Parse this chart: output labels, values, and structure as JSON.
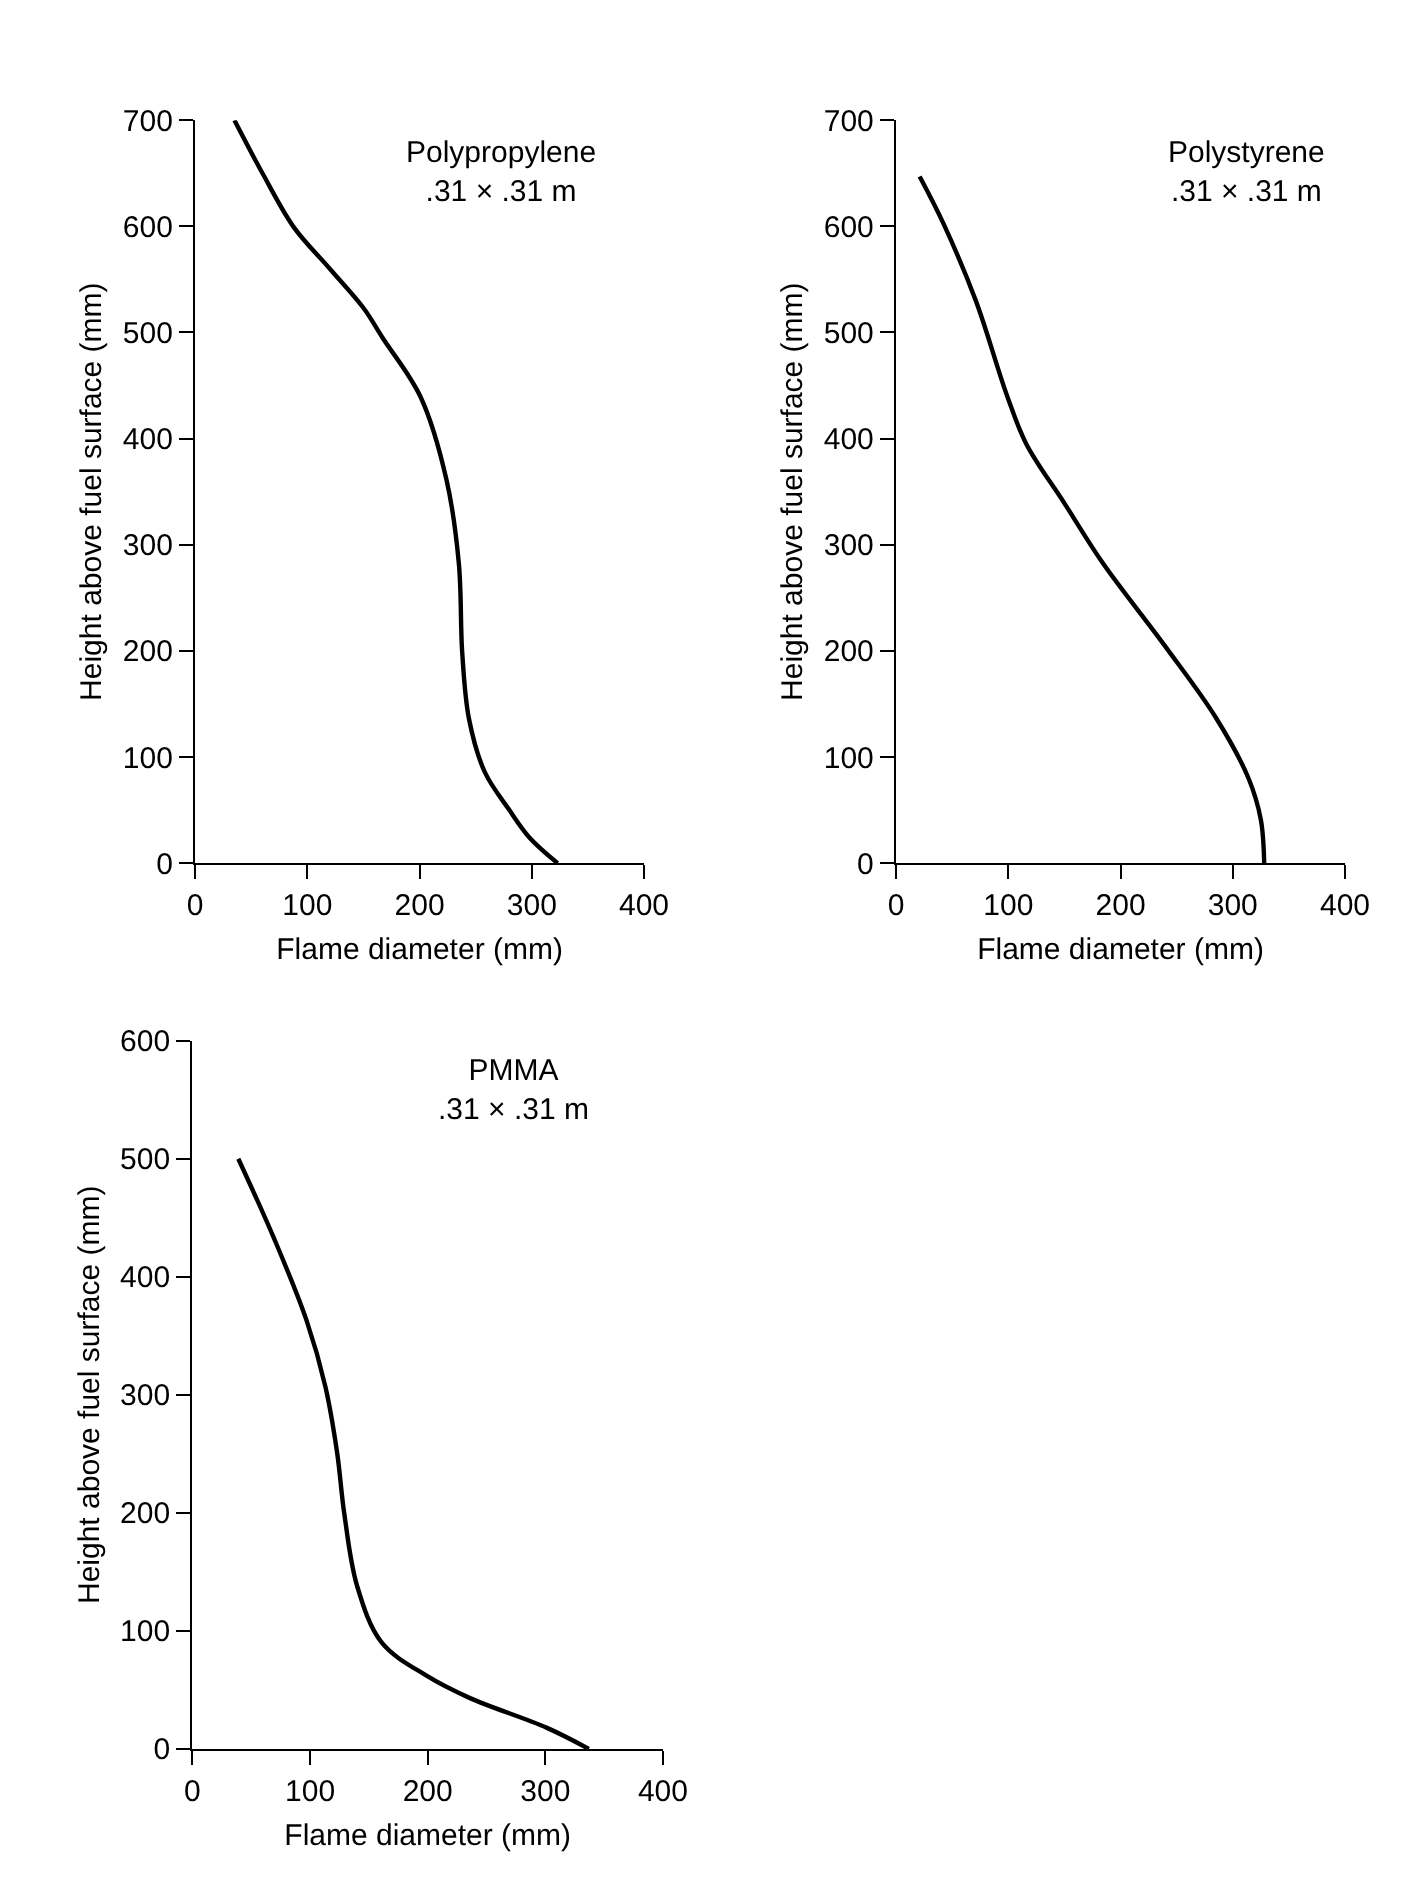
{
  "chart_data": [
    {
      "type": "line",
      "xlabel": "Flame diameter (mm)",
      "ylabel": "Height above fuel surface (mm)",
      "annotations": [
        "Polypropylene\n.31 × .31 m"
      ],
      "xlim": [
        0,
        400
      ],
      "xticks": [
        0,
        100,
        200,
        300,
        400
      ],
      "ylim": [
        0,
        700
      ],
      "yticks": [
        0,
        100,
        200,
        300,
        400,
        500,
        600,
        700
      ],
      "line_style": "solid",
      "series": [
        {
          "color": "#000000",
          "x": [
            35,
            60,
            88,
            120,
            150,
            167,
            201,
            224,
            235,
            238,
            244,
            258,
            280,
            298,
            323
          ],
          "values": [
            700,
            650,
            599,
            560,
            523,
            495,
            439,
            361,
            282,
            198,
            136,
            86,
            50,
            24,
            0
          ]
        }
      ]
    },
    {
      "type": "line",
      "xlabel": "Flame diameter (mm)",
      "ylabel": "Height above fuel surface (mm)",
      "annotations": [
        "Polystyrene\n.31 × .31 m"
      ],
      "xlim": [
        0,
        400
      ],
      "xticks": [
        0,
        100,
        200,
        300,
        400
      ],
      "ylim": [
        0,
        700
      ],
      "yticks": [
        0,
        100,
        200,
        300,
        400,
        500,
        600,
        700
      ],
      "line_style": "solid",
      "series": [
        {
          "color": "#000000",
          "x": [
            21,
            42,
            71,
            99,
            116,
            150,
            184,
            240,
            285,
            314,
            325,
            328
          ],
          "values": [
            647,
            603,
            530,
            440,
            395,
            339,
            283,
            204,
            137,
            80,
            41,
            0
          ]
        }
      ]
    },
    {
      "type": "line",
      "xlabel": "Flame diameter (mm)",
      "ylabel": "Height above fuel surface (mm)",
      "annotations": [
        "PMMA\n.31 × .31 m"
      ],
      "xlim": [
        0,
        400
      ],
      "xticks": [
        0,
        100,
        200,
        300,
        400
      ],
      "ylim": [
        0,
        600
      ],
      "yticks": [
        0,
        100,
        200,
        300,
        400,
        500,
        600
      ],
      "line_style": "solid",
      "series": [
        {
          "color": "#000000",
          "x": [
            39,
            70,
            97,
            113,
            123,
            129,
            140,
            161,
            199,
            236,
            301,
            337
          ],
          "values": [
            500,
            431,
            363,
            307,
            251,
            200,
            138,
            90,
            62,
            43,
            18,
            0
          ]
        }
      ]
    }
  ]
}
